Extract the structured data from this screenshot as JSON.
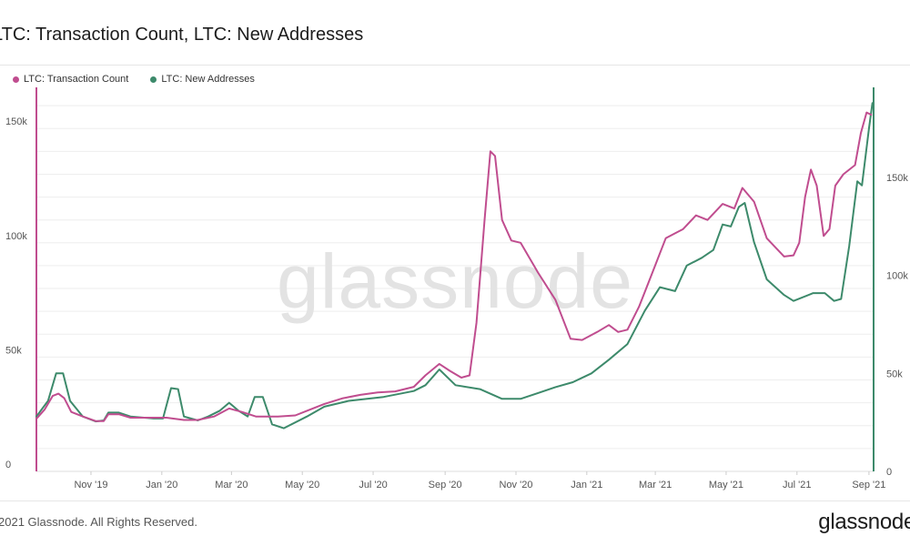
{
  "header": {
    "title": "LTC: Transaction Count, LTC: New Addresses"
  },
  "watermark": "glassnode",
  "footer": {
    "copyright": "2021 Glassnode. All Rights Reserved.",
    "brand": "glassnode"
  },
  "colors": {
    "transaction_count": "#c04d8f",
    "new_addresses": "#3d8a6b",
    "grid": "#eeeeee",
    "watermark": "#e3e3e3"
  },
  "chart_data": {
    "type": "line",
    "grid": true,
    "legend_position": "top-left",
    "x_range": [
      "2019-09-15",
      "2021-09-05"
    ],
    "x_ticks": [
      {
        "label": "Nov '19",
        "date": "2019-11-01"
      },
      {
        "label": "Jan '20",
        "date": "2020-01-01"
      },
      {
        "label": "Mar '20",
        "date": "2020-03-01"
      },
      {
        "label": "May '20",
        "date": "2020-05-01"
      },
      {
        "label": "Jul '20",
        "date": "2020-07-01"
      },
      {
        "label": "Sep '20",
        "date": "2020-09-01"
      },
      {
        "label": "Nov '20",
        "date": "2020-11-01"
      },
      {
        "label": "Jan '21",
        "date": "2021-01-01"
      },
      {
        "label": "Mar '21",
        "date": "2021-03-01"
      },
      {
        "label": "May '21",
        "date": "2021-05-01"
      },
      {
        "label": "Jul '21",
        "date": "2021-07-01"
      },
      {
        "label": "Sep '21",
        "date": "2021-09-01"
      }
    ],
    "left_axis": {
      "ylim": [
        0,
        168000
      ],
      "ticks": [
        0,
        50000,
        100000,
        150000
      ],
      "tick_labels": [
        "0",
        "50k",
        "100k",
        "150k"
      ]
    },
    "right_axis": {
      "ylim": [
        0,
        196000
      ],
      "ticks": [
        0,
        50000,
        100000,
        150000
      ],
      "tick_labels": [
        "0",
        "50k",
        "100k",
        "150k"
      ]
    },
    "series": [
      {
        "name": "LTC: Transaction Count",
        "axis": "left",
        "color": "#c04d8f",
        "points": [
          [
            "2019-09-15",
            23000
          ],
          [
            "2019-09-22",
            27000
          ],
          [
            "2019-09-29",
            33000
          ],
          [
            "2019-10-04",
            34000
          ],
          [
            "2019-10-09",
            32000
          ],
          [
            "2019-10-15",
            26000
          ],
          [
            "2019-10-25",
            24000
          ],
          [
            "2019-11-05",
            22000
          ],
          [
            "2019-11-12",
            22000
          ],
          [
            "2019-11-16",
            25000
          ],
          [
            "2019-11-25",
            25000
          ],
          [
            "2019-12-05",
            23500
          ],
          [
            "2019-12-20",
            23500
          ],
          [
            "2020-01-05",
            23500
          ],
          [
            "2020-01-20",
            22500
          ],
          [
            "2020-02-01",
            22500
          ],
          [
            "2020-02-15",
            24000
          ],
          [
            "2020-02-28",
            27500
          ],
          [
            "2020-03-10",
            26000
          ],
          [
            "2020-03-22",
            24000
          ],
          [
            "2020-04-10",
            24000
          ],
          [
            "2020-04-25",
            24500
          ],
          [
            "2020-05-05",
            26500
          ],
          [
            "2020-05-20",
            29500
          ],
          [
            "2020-06-05",
            32000
          ],
          [
            "2020-06-20",
            33500
          ],
          [
            "2020-07-05",
            34500
          ],
          [
            "2020-07-20",
            35000
          ],
          [
            "2020-08-05",
            37000
          ],
          [
            "2020-08-15",
            42000
          ],
          [
            "2020-08-27",
            47000
          ],
          [
            "2020-09-05",
            44000
          ],
          [
            "2020-09-15",
            41000
          ],
          [
            "2020-09-22",
            42000
          ],
          [
            "2020-09-28",
            65000
          ],
          [
            "2020-10-05",
            110000
          ],
          [
            "2020-10-10",
            140000
          ],
          [
            "2020-10-14",
            138000
          ],
          [
            "2020-10-20",
            110000
          ],
          [
            "2020-10-28",
            101000
          ],
          [
            "2020-11-05",
            100000
          ],
          [
            "2020-11-20",
            87000
          ],
          [
            "2020-12-05",
            75000
          ],
          [
            "2020-12-18",
            58000
          ],
          [
            "2020-12-28",
            57500
          ],
          [
            "2021-01-10",
            61000
          ],
          [
            "2021-01-20",
            64000
          ],
          [
            "2021-01-28",
            61000
          ],
          [
            "2021-02-05",
            62000
          ],
          [
            "2021-02-15",
            72000
          ],
          [
            "2021-02-25",
            85000
          ],
          [
            "2021-03-10",
            102000
          ],
          [
            "2021-03-25",
            106000
          ],
          [
            "2021-04-05",
            112000
          ],
          [
            "2021-04-15",
            110000
          ],
          [
            "2021-04-28",
            117000
          ],
          [
            "2021-05-08",
            115000
          ],
          [
            "2021-05-15",
            124000
          ],
          [
            "2021-05-25",
            118000
          ],
          [
            "2021-06-05",
            102000
          ],
          [
            "2021-06-20",
            94000
          ],
          [
            "2021-06-28",
            94500
          ],
          [
            "2021-07-03",
            100000
          ],
          [
            "2021-07-08",
            120000
          ],
          [
            "2021-07-13",
            132000
          ],
          [
            "2021-07-18",
            125000
          ],
          [
            "2021-07-24",
            103000
          ],
          [
            "2021-07-29",
            106000
          ],
          [
            "2021-08-03",
            125000
          ],
          [
            "2021-08-10",
            130000
          ],
          [
            "2021-08-20",
            134000
          ],
          [
            "2021-08-25",
            148000
          ],
          [
            "2021-08-30",
            157000
          ],
          [
            "2021-09-03",
            156000
          ]
        ]
      },
      {
        "name": "LTC: New Addresses",
        "axis": "right",
        "color": "#3d8a6b",
        "points": [
          [
            "2019-09-15",
            28000
          ],
          [
            "2019-09-25",
            36000
          ],
          [
            "2019-10-02",
            50000
          ],
          [
            "2019-10-08",
            50000
          ],
          [
            "2019-10-14",
            36000
          ],
          [
            "2019-10-25",
            28000
          ],
          [
            "2019-11-05",
            25500
          ],
          [
            "2019-11-12",
            26000
          ],
          [
            "2019-11-16",
            30000
          ],
          [
            "2019-11-25",
            30000
          ],
          [
            "2019-12-05",
            28000
          ],
          [
            "2019-12-25",
            27000
          ],
          [
            "2020-01-02",
            27000
          ],
          [
            "2020-01-09",
            42500
          ],
          [
            "2020-01-15",
            42000
          ],
          [
            "2020-01-20",
            28000
          ],
          [
            "2020-02-01",
            26000
          ],
          [
            "2020-02-10",
            28000
          ],
          [
            "2020-02-20",
            31000
          ],
          [
            "2020-02-28",
            35000
          ],
          [
            "2020-03-07",
            31000
          ],
          [
            "2020-03-15",
            28000
          ],
          [
            "2020-03-21",
            38000
          ],
          [
            "2020-03-28",
            38000
          ],
          [
            "2020-04-05",
            24000
          ],
          [
            "2020-04-15",
            22000
          ],
          [
            "2020-05-05",
            28000
          ],
          [
            "2020-05-20",
            33000
          ],
          [
            "2020-06-10",
            36000
          ],
          [
            "2020-07-10",
            38000
          ],
          [
            "2020-08-05",
            41000
          ],
          [
            "2020-08-15",
            44000
          ],
          [
            "2020-08-27",
            52000
          ],
          [
            "2020-09-10",
            44000
          ],
          [
            "2020-10-01",
            42000
          ],
          [
            "2020-10-20",
            37000
          ],
          [
            "2020-11-05",
            37000
          ],
          [
            "2020-11-20",
            40000
          ],
          [
            "2020-12-05",
            43000
          ],
          [
            "2020-12-20",
            45500
          ],
          [
            "2021-01-05",
            50000
          ],
          [
            "2021-01-20",
            57000
          ],
          [
            "2021-02-05",
            65000
          ],
          [
            "2021-02-20",
            82000
          ],
          [
            "2021-03-05",
            94000
          ],
          [
            "2021-03-18",
            92000
          ],
          [
            "2021-03-28",
            105000
          ],
          [
            "2021-04-10",
            109000
          ],
          [
            "2021-04-20",
            113000
          ],
          [
            "2021-04-28",
            126000
          ],
          [
            "2021-05-05",
            125000
          ],
          [
            "2021-05-12",
            135000
          ],
          [
            "2021-05-17",
            137000
          ],
          [
            "2021-05-25",
            117000
          ],
          [
            "2021-06-05",
            98000
          ],
          [
            "2021-06-20",
            90000
          ],
          [
            "2021-06-28",
            87000
          ],
          [
            "2021-07-15",
            91000
          ],
          [
            "2021-07-25",
            91000
          ],
          [
            "2021-08-02",
            87000
          ],
          [
            "2021-08-08",
            88000
          ],
          [
            "2021-08-15",
            115000
          ],
          [
            "2021-08-22",
            148000
          ],
          [
            "2021-08-26",
            146000
          ],
          [
            "2021-09-01",
            175000
          ],
          [
            "2021-09-04",
            188000
          ]
        ]
      }
    ]
  }
}
